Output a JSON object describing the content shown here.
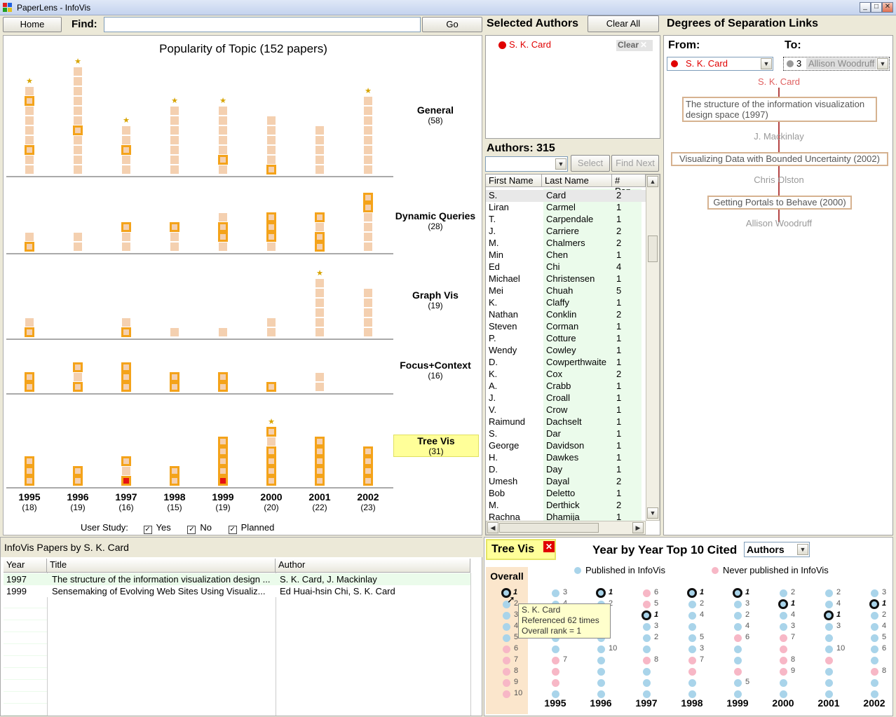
{
  "window": {
    "title": "PaperLens - InfoVis"
  },
  "toolbar": {
    "home": "Home",
    "find_label": "Find:",
    "find_value": "",
    "go": "Go"
  },
  "popularity": {
    "title": "Popularity of Topic (152 papers)",
    "topics": [
      {
        "name": "General",
        "count": "(58)"
      },
      {
        "name": "Dynamic Queries",
        "count": "(28)"
      },
      {
        "name": "Graph Vis",
        "count": "(19)"
      },
      {
        "name": "Focus+Context",
        "count": "(16)"
      },
      {
        "name": "Tree Vis",
        "count": "(31)"
      }
    ],
    "years": [
      {
        "year": "1995",
        "count": "(18)"
      },
      {
        "year": "1996",
        "count": "(19)"
      },
      {
        "year": "1997",
        "count": "(16)"
      },
      {
        "year": "1998",
        "count": "(15)"
      },
      {
        "year": "1999",
        "count": "(19)"
      },
      {
        "year": "2000",
        "count": "(20)"
      },
      {
        "year": "2001",
        "count": "(22)"
      },
      {
        "year": "2002",
        "count": "(23)"
      }
    ],
    "user_study_label": "User Study:",
    "filters": [
      {
        "label": "Yes",
        "checked": true
      },
      {
        "label": "No",
        "checked": true
      },
      {
        "label": "Planned",
        "checked": true
      }
    ]
  },
  "selected_authors": {
    "title": "Selected Authors",
    "clear_all": "Clear All",
    "items": [
      {
        "name": "S. K. Card",
        "color": "#e00000",
        "clear": "Clear"
      }
    ]
  },
  "authors": {
    "title": "Authors: 315",
    "select": "Select",
    "find_next": "Find Next",
    "columns": [
      "First Name",
      "Last Name",
      "# Pap..."
    ],
    "rows": [
      [
        "S.",
        "Card",
        "2"
      ],
      [
        "Liran",
        "Carmel",
        "1"
      ],
      [
        "T.",
        "Carpendale",
        "1"
      ],
      [
        "J.",
        "Carriere",
        "2"
      ],
      [
        "M.",
        "Chalmers",
        "2"
      ],
      [
        "Min",
        "Chen",
        "1"
      ],
      [
        "Ed",
        "Chi",
        "4"
      ],
      [
        "Michael",
        "Christensen",
        "1"
      ],
      [
        "Mei",
        "Chuah",
        "5"
      ],
      [
        "K.",
        "Claffy",
        "1"
      ],
      [
        "Nathan",
        "Conklin",
        "2"
      ],
      [
        "Steven",
        "Corman",
        "1"
      ],
      [
        "P.",
        "Cotture",
        "1"
      ],
      [
        "Wendy",
        "Cowley",
        "1"
      ],
      [
        "D.",
        "Cowperthwaite",
        "1"
      ],
      [
        "K.",
        "Cox",
        "2"
      ],
      [
        "A.",
        "Crabb",
        "1"
      ],
      [
        "J.",
        "Croall",
        "1"
      ],
      [
        "V.",
        "Crow",
        "1"
      ],
      [
        "Raimund",
        "Dachselt",
        "1"
      ],
      [
        "S.",
        "Dar",
        "1"
      ],
      [
        "George",
        "Davidson",
        "1"
      ],
      [
        "H.",
        "Dawkes",
        "1"
      ],
      [
        "D.",
        "Day",
        "1"
      ],
      [
        "Umesh",
        "Dayal",
        "2"
      ],
      [
        "Bob",
        "Deletto",
        "1"
      ],
      [
        "M.",
        "Derthick",
        "2"
      ],
      [
        "Rachna",
        "Dhamija",
        "1"
      ]
    ]
  },
  "degrees": {
    "title": "Degrees of Separation Links",
    "from_label": "From:",
    "to_label": "To:",
    "from_value": "S. K. Card",
    "from_color": "#e00000",
    "to_num": "3",
    "to_value": "Allison Woodruff",
    "chain": [
      {
        "type": "author",
        "text": "S. K. Card",
        "highlight": true
      },
      {
        "type": "paper",
        "text": "The structure of the information visualization design space (1997)"
      },
      {
        "type": "author",
        "text": "J. Mackinlay"
      },
      {
        "type": "paper",
        "text": "Visualizing Data with Bounded Uncertainty (2002)"
      },
      {
        "type": "author",
        "text": "Chris Olston"
      },
      {
        "type": "paper",
        "text": "Getting Portals to Behave (2000)"
      },
      {
        "type": "author",
        "text": "Allison Woodruff"
      }
    ]
  },
  "papers": {
    "title": "InfoVis Papers by S. K. Card",
    "columns": [
      "Year",
      "Title",
      "Author"
    ],
    "rows": [
      [
        "1997",
        "The structure of the information visualization design ...",
        "S. K. Card, J. Mackinlay"
      ],
      [
        "1999",
        "Sensemaking of Evolving Web Sites Using Visualiz...",
        "Ed Huai-hsin Chi, S. K. Card"
      ]
    ]
  },
  "cited": {
    "topic": "Tree Vis",
    "title": "Year by Year Top 10 Cited",
    "mode": "Authors",
    "legend_published": "Published in InfoVis",
    "legend_never": "Never published in InfoVis",
    "overall_label": "Overall",
    "overall_ranks": [
      "1",
      "2",
      "3",
      "4",
      "5",
      "6",
      "7",
      "8",
      "9",
      "10"
    ],
    "years": [
      "1995",
      "1996",
      "1997",
      "1998",
      "1999",
      "2000",
      "2001",
      "2002"
    ],
    "tooltip": {
      "name": "S. K. Card",
      "line2": "Referenced 62 times",
      "line3": "Overall rank = 1"
    }
  },
  "colors": {
    "accent": "#f4a31a",
    "bar": "#f4d0b0",
    "published": "#a9d4ea",
    "never": "#f7b7c6",
    "link": "#b08060",
    "highlight": "#ffff99"
  }
}
